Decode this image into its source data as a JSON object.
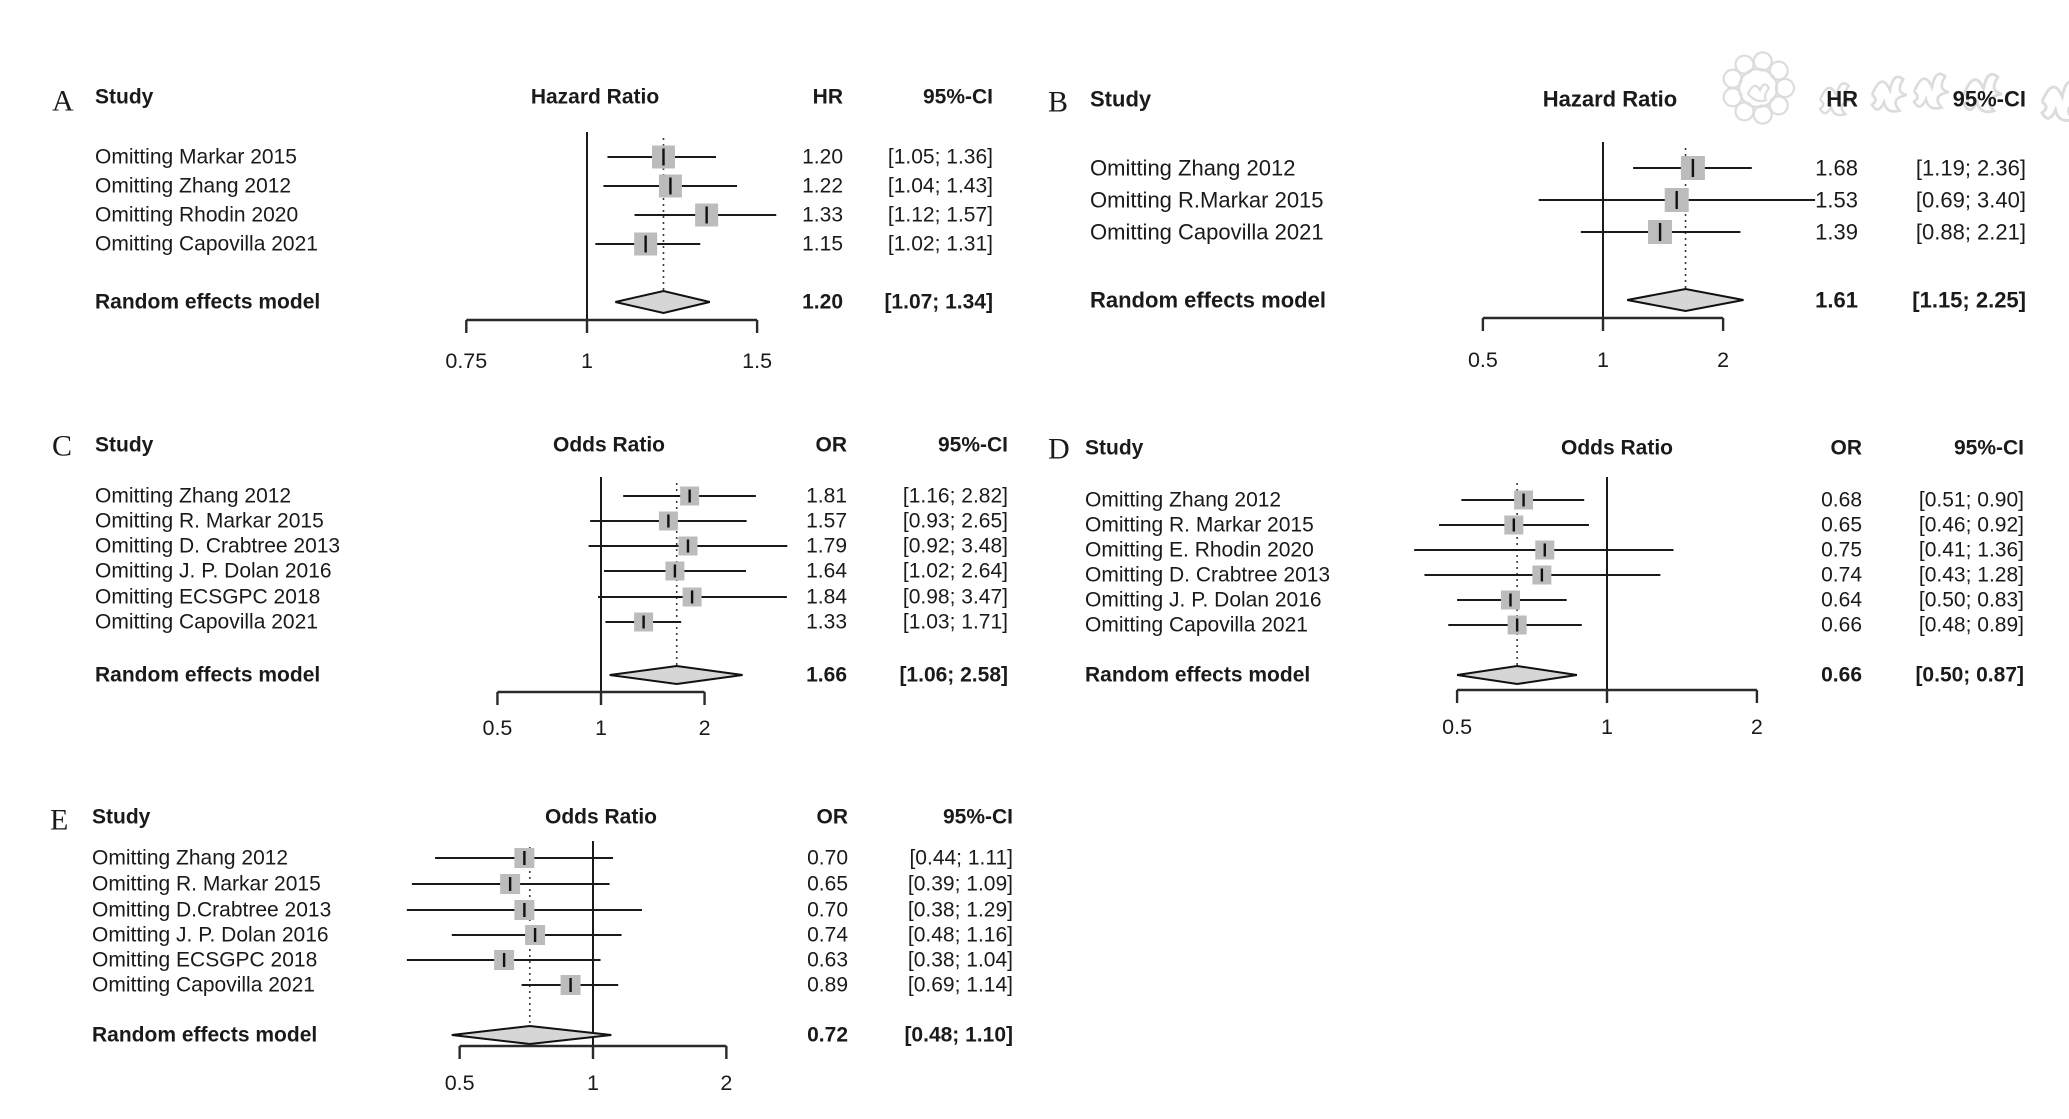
{
  "figure": {
    "background": "#ffffff",
    "colors": {
      "text": "#1a1a1a",
      "line": "#1a1a1a",
      "square": "#bcbcbc",
      "square_tick": "#111111",
      "diamond_fill": "#d6d6d6",
      "diamond_stroke": "#111111",
      "watermark": "#d9d9d9"
    },
    "watermark": {
      "present": true,
      "description": "faint circular seal with script characters behind panel B header"
    }
  },
  "chart_data": [
    {
      "panel": "A",
      "type": "forest",
      "scale": "log",
      "study_header": "Study",
      "effect_header": "Hazard Ratio",
      "est_header": "HR",
      "ci_header": "95%-CI",
      "pooled_label": "Random effects model",
      "ref_line": 1,
      "ticks": [
        0.75,
        1,
        1.5
      ],
      "tick_labels": [
        "0.75",
        "1",
        "1.5"
      ],
      "studies": [
        {
          "label": "Omitting Markar 2015",
          "est": 1.2,
          "lo": 1.05,
          "hi": 1.36,
          "est_text": "1.20",
          "ci_text": "[1.05; 1.36]"
        },
        {
          "label": "Omitting Zhang 2012",
          "est": 1.22,
          "lo": 1.04,
          "hi": 1.43,
          "est_text": "1.22",
          "ci_text": "[1.04; 1.43]"
        },
        {
          "label": "Omitting Rhodin 2020",
          "est": 1.33,
          "lo": 1.12,
          "hi": 1.57,
          "est_text": "1.33",
          "ci_text": "[1.12; 1.57]"
        },
        {
          "label": "Omitting Capovilla 2021",
          "est": 1.15,
          "lo": 1.02,
          "hi": 1.31,
          "est_text": "1.15",
          "ci_text": "[1.02; 1.31]"
        }
      ],
      "pooled": {
        "est": 1.2,
        "lo": 1.07,
        "hi": 1.34,
        "est_text": "1.20",
        "ci_text": "[1.07; 1.34]"
      }
    },
    {
      "panel": "B",
      "type": "forest",
      "scale": "log",
      "study_header": "Study",
      "effect_header": "Hazard Ratio",
      "est_header": "HR",
      "ci_header": "95%-CI",
      "pooled_label": "Random effects model",
      "ref_line": 1,
      "ticks": [
        0.5,
        1,
        2
      ],
      "tick_labels": [
        "0.5",
        "1",
        "2"
      ],
      "studies": [
        {
          "label": "Omitting Zhang 2012",
          "est": 1.68,
          "lo": 1.19,
          "hi": 2.36,
          "est_text": "1.68",
          "ci_text": "[1.19; 2.36]"
        },
        {
          "label": "Omitting R.Markar 2015",
          "est": 1.53,
          "lo": 0.69,
          "hi": 3.4,
          "est_text": "1.53",
          "ci_text": "[0.69; 3.40]"
        },
        {
          "label": "Omitting Capovilla 2021",
          "est": 1.39,
          "lo": 0.88,
          "hi": 2.21,
          "est_text": "1.39",
          "ci_text": "[0.88; 2.21]"
        }
      ],
      "pooled": {
        "est": 1.61,
        "lo": 1.15,
        "hi": 2.25,
        "est_text": "1.61",
        "ci_text": "[1.15; 2.25]"
      }
    },
    {
      "panel": "C",
      "type": "forest",
      "scale": "log",
      "study_header": "Study",
      "effect_header": "Odds Ratio",
      "est_header": "OR",
      "ci_header": "95%-CI",
      "pooled_label": "Random effects model",
      "ref_line": 1,
      "ticks": [
        0.5,
        1,
        2
      ],
      "tick_labels": [
        "0.5",
        "1",
        "2"
      ],
      "studies": [
        {
          "label": "Omitting Zhang 2012",
          "est": 1.81,
          "lo": 1.16,
          "hi": 2.82,
          "est_text": "1.81",
          "ci_text": "[1.16; 2.82]"
        },
        {
          "label": "Omitting R. Markar 2015",
          "est": 1.57,
          "lo": 0.93,
          "hi": 2.65,
          "est_text": "1.57",
          "ci_text": "[0.93; 2.65]"
        },
        {
          "label": "Omitting D. Crabtree 2013",
          "est": 1.79,
          "lo": 0.92,
          "hi": 3.48,
          "est_text": "1.79",
          "ci_text": "[0.92; 3.48]"
        },
        {
          "label": "Omitting J. P. Dolan 2016",
          "est": 1.64,
          "lo": 1.02,
          "hi": 2.64,
          "est_text": "1.64",
          "ci_text": "[1.02; 2.64]"
        },
        {
          "label": "Omitting ECSGPC 2018",
          "est": 1.84,
          "lo": 0.98,
          "hi": 3.47,
          "est_text": "1.84",
          "ci_text": "[0.98; 3.47]"
        },
        {
          "label": "Omitting Capovilla 2021",
          "est": 1.33,
          "lo": 1.03,
          "hi": 1.71,
          "est_text": "1.33",
          "ci_text": "[1.03; 1.71]"
        }
      ],
      "pooled": {
        "est": 1.66,
        "lo": 1.06,
        "hi": 2.58,
        "est_text": "1.66",
        "ci_text": "[1.06; 2.58]"
      }
    },
    {
      "panel": "D",
      "type": "forest",
      "scale": "log",
      "study_header": "Study",
      "effect_header": "Odds Ratio",
      "est_header": "OR",
      "ci_header": "95%-CI",
      "pooled_label": "Random effects model",
      "ref_line": 1,
      "ticks": [
        0.5,
        1,
        2
      ],
      "tick_labels": [
        "0.5",
        "1",
        "2"
      ],
      "studies": [
        {
          "label": "Omitting Zhang 2012",
          "est": 0.68,
          "lo": 0.51,
          "hi": 0.9,
          "est_text": "0.68",
          "ci_text": "[0.51; 0.90]"
        },
        {
          "label": "Omitting R. Markar 2015",
          "est": 0.65,
          "lo": 0.46,
          "hi": 0.92,
          "est_text": "0.65",
          "ci_text": "[0.46; 0.92]"
        },
        {
          "label": "Omitting E. Rhodin 2020",
          "est": 0.75,
          "lo": 0.41,
          "hi": 1.36,
          "est_text": "0.75",
          "ci_text": "[0.41; 1.36]"
        },
        {
          "label": "Omitting D. Crabtree 2013",
          "est": 0.74,
          "lo": 0.43,
          "hi": 1.28,
          "est_text": "0.74",
          "ci_text": "[0.43; 1.28]"
        },
        {
          "label": "Omitting J. P. Dolan 2016",
          "est": 0.64,
          "lo": 0.5,
          "hi": 0.83,
          "est_text": "0.64",
          "ci_text": "[0.50; 0.83]"
        },
        {
          "label": "Omitting Capovilla 2021",
          "est": 0.66,
          "lo": 0.48,
          "hi": 0.89,
          "est_text": "0.66",
          "ci_text": "[0.48; 0.89]"
        }
      ],
      "pooled": {
        "est": 0.66,
        "lo": 0.5,
        "hi": 0.87,
        "est_text": "0.66",
        "ci_text": "[0.50; 0.87]"
      }
    },
    {
      "panel": "E",
      "type": "forest",
      "scale": "log",
      "study_header": "Study",
      "effect_header": "Odds Ratio",
      "est_header": "OR",
      "ci_header": "95%-CI",
      "pooled_label": "Random effects model",
      "ref_line": 1,
      "ticks": [
        0.5,
        1,
        2
      ],
      "tick_labels": [
        "0.5",
        "1",
        "2"
      ],
      "studies": [
        {
          "label": "Omitting Zhang 2012",
          "est": 0.7,
          "lo": 0.44,
          "hi": 1.11,
          "est_text": "0.70",
          "ci_text": "[0.44; 1.11]"
        },
        {
          "label": "Omitting R. Markar 2015",
          "est": 0.65,
          "lo": 0.39,
          "hi": 1.09,
          "est_text": "0.65",
          "ci_text": "[0.39; 1.09]"
        },
        {
          "label": "Omitting D.Crabtree 2013",
          "est": 0.7,
          "lo": 0.38,
          "hi": 1.29,
          "est_text": "0.70",
          "ci_text": "[0.38; 1.29]"
        },
        {
          "label": "Omitting J. P. Dolan 2016",
          "est": 0.74,
          "lo": 0.48,
          "hi": 1.16,
          "est_text": "0.74",
          "ci_text": "[0.48; 1.16]"
        },
        {
          "label": "Omitting ECSGPC 2018",
          "est": 0.63,
          "lo": 0.38,
          "hi": 1.04,
          "est_text": "0.63",
          "ci_text": "[0.38; 1.04]"
        },
        {
          "label": "Omitting Capovilla 2021",
          "est": 0.89,
          "lo": 0.69,
          "hi": 1.14,
          "est_text": "0.89",
          "ci_text": "[0.69; 1.14]"
        }
      ],
      "pooled": {
        "est": 0.72,
        "lo": 0.48,
        "hi": 1.1,
        "est_text": "0.72",
        "ci_text": "[0.48; 1.10]"
      }
    }
  ]
}
